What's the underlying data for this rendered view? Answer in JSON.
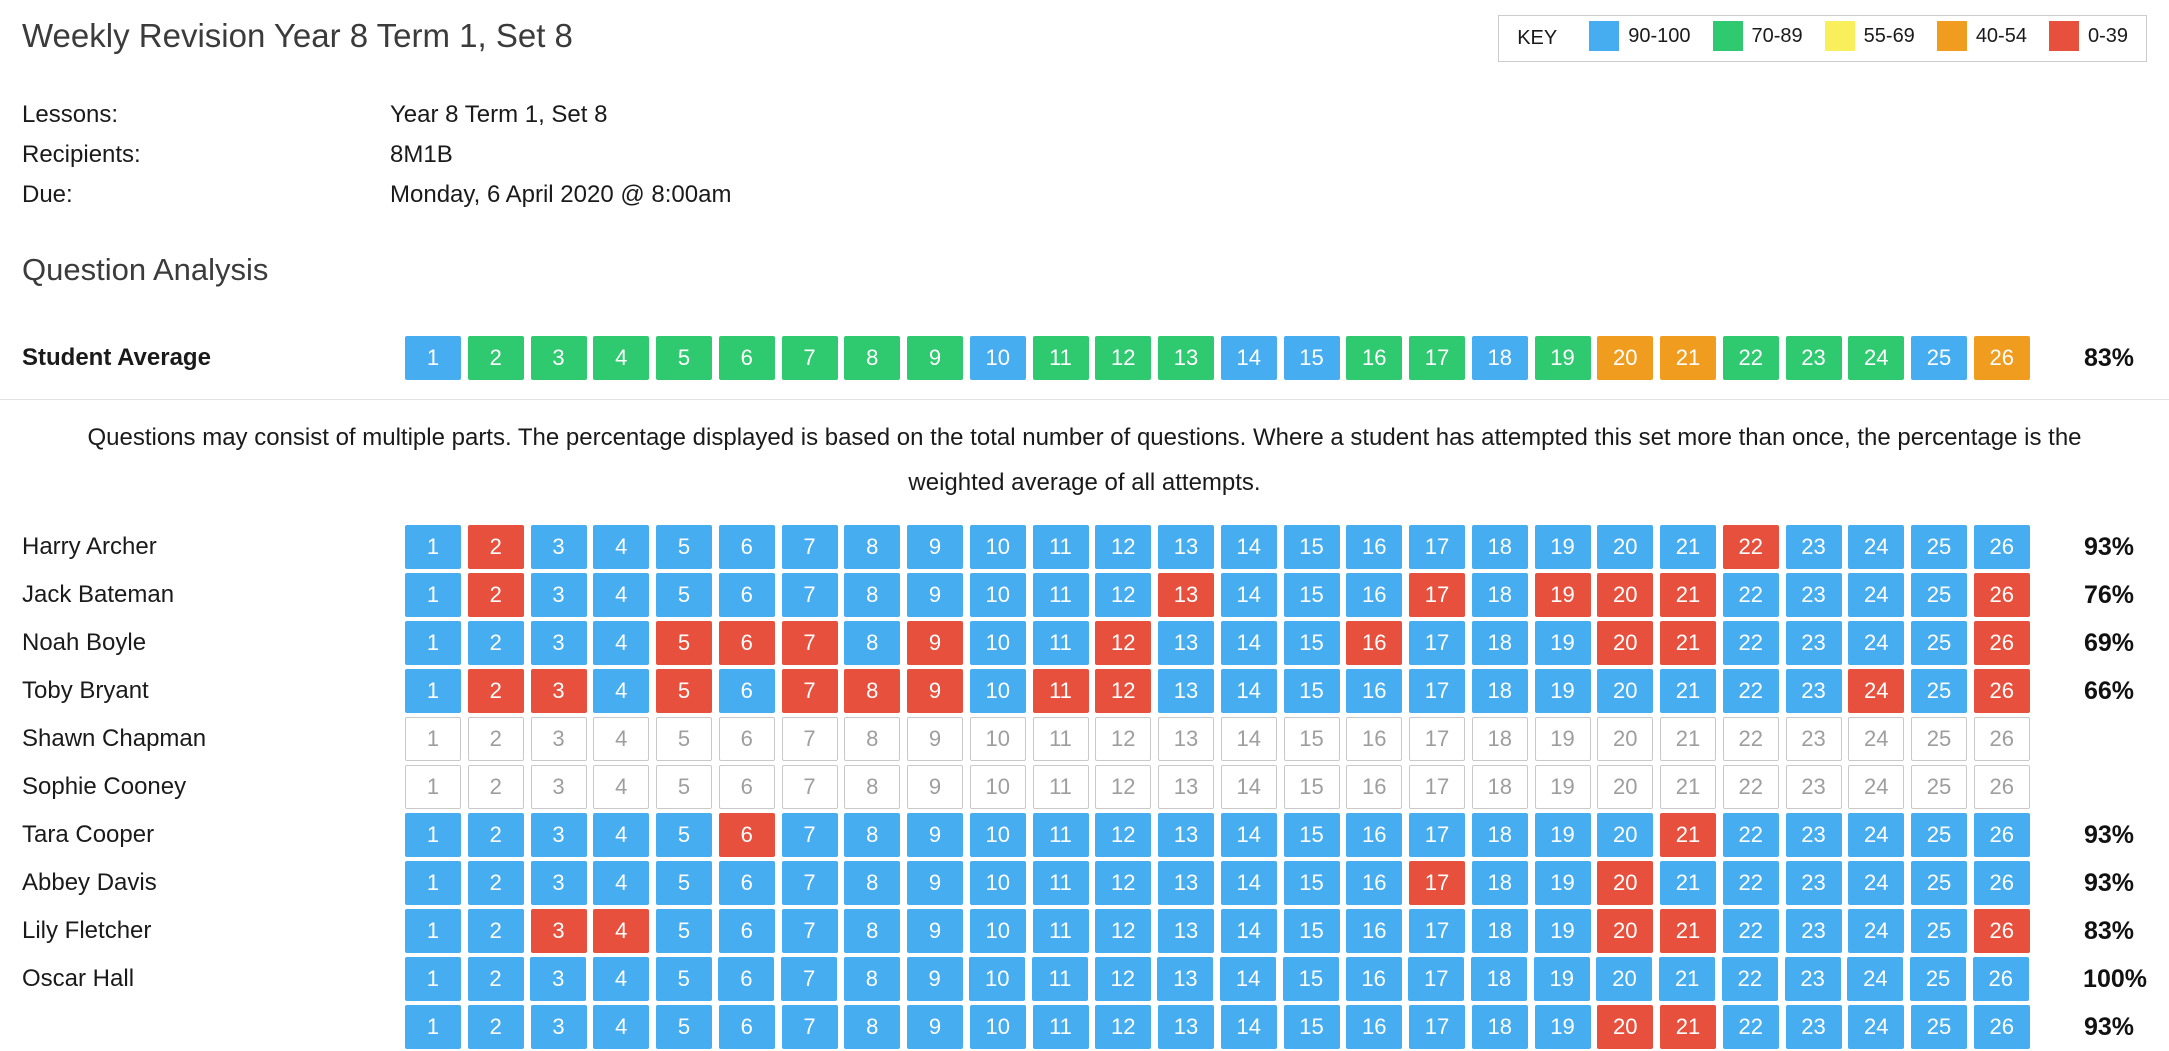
{
  "page_title": "Weekly Revision Year 8 Term 1, Set 8",
  "key": {
    "label": "KEY",
    "bands": [
      {
        "code": "b",
        "range": "90-100"
      },
      {
        "code": "g",
        "range": "70-89"
      },
      {
        "code": "y",
        "range": "55-69"
      },
      {
        "code": "o",
        "range": "40-54"
      },
      {
        "code": "r",
        "range": "0-39"
      }
    ]
  },
  "colors": {
    "b": "#47adf1",
    "g": "#2fc96f",
    "y": "#f8ef5b",
    "o": "#f09d1f",
    "r": "#e8503e",
    "e": "#ffffff"
  },
  "meta": {
    "rows": [
      {
        "label": "Lessons:",
        "value": "Year 8 Term 1, Set 8"
      },
      {
        "label": "Recipients:",
        "value": "8M1B"
      },
      {
        "label": "Due:",
        "value": "Monday, 6 April 2020 @ 8:00am"
      }
    ]
  },
  "section_title": "Question Analysis",
  "question_count": 26,
  "average_row": {
    "label": "Student Average",
    "percent": "83%",
    "cells": "bggggggggbgggbbggbgoogggbo"
  },
  "note": "Questions may consist of multiple parts. The percentage displayed is based on the total number of questions. Where a student has attempted this set more than once, the percentage is the weighted average of all attempts.",
  "students": [
    {
      "name": "Harry Archer",
      "percent": "93%",
      "cells": "brbbbbbbbbbbbbbbbbbbbrbbbb"
    },
    {
      "name": "Jack Bateman",
      "percent": "76%",
      "cells": "brbbbbbbbbbbrbbbrbrrrbbbbr"
    },
    {
      "name": "Noah Boyle",
      "percent": "69%",
      "cells": "bbbbrrrbrbbrbbbrbbbrrbbbbr"
    },
    {
      "name": "Toby Bryant",
      "percent": "66%",
      "cells": "brrbrbrrrbrrbbbbbbbbbbbrbr"
    },
    {
      "name": "Shawn Chapman",
      "percent": "",
      "cells": "eeeeeeeeeeeeeeeeeeeeeeeeee"
    },
    {
      "name": "Sophie Cooney",
      "percent": "",
      "cells": "eeeeeeeeeeeeeeeeeeeeeeeeee"
    },
    {
      "name": "Tara Cooper",
      "percent": "93%",
      "cells": "bbbbbrbbbbbbbbbbbbbbrbbbbb"
    },
    {
      "name": "Abbey Davis",
      "percent": "93%",
      "cells": "bbbbbbbbbbbbbbbbrbbrbbbbbb"
    },
    {
      "name": "Lily Fletcher",
      "percent": "83%",
      "cells": "bbrrbbbbbbbbbbbbbbbrrbbbbr"
    },
    {
      "name": "Oscar Hall",
      "percent": "100%",
      "cells": "bbbbbbbbbbbbbbbbbbbbbbbbbb"
    },
    {
      "name": "",
      "percent": "93%",
      "cells": "bbbbbbbbbbbbbbbbbbbrrbbbbb",
      "partial": true
    }
  ]
}
